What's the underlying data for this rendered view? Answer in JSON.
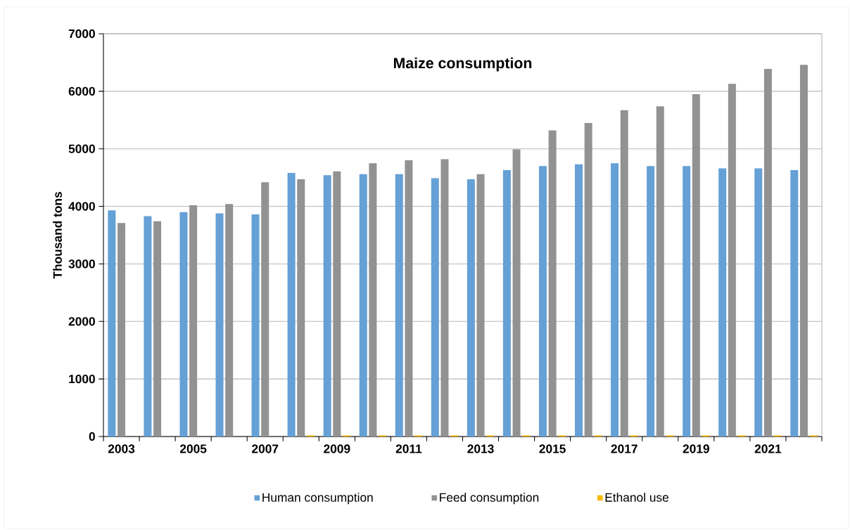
{
  "chart_data": {
    "type": "bar",
    "title": "Maize consumption",
    "ylabel": "Thousand tons",
    "categories": [
      "2003",
      null,
      "2005",
      null,
      "2007",
      null,
      "2009",
      null,
      "2011",
      null,
      "2013",
      null,
      "2015",
      null,
      "2017",
      null,
      "2019",
      null,
      "2021",
      null
    ],
    "series": [
      {
        "name": "Human consumption",
        "color": "#65a0d6",
        "values": [
          3930,
          3830,
          3900,
          3880,
          3860,
          4580,
          4540,
          4560,
          4560,
          4490,
          4470,
          4630,
          4700,
          4730,
          4750,
          4700,
          4700,
          4660,
          4660,
          4630
        ]
      },
      {
        "name": "Feed consumption",
        "color": "#929292",
        "values": [
          3710,
          3740,
          4020,
          4040,
          4420,
          4470,
          4610,
          4750,
          4800,
          4820,
          4560,
          4990,
          5320,
          5450,
          5670,
          5740,
          5950,
          6130,
          6390,
          6460
        ]
      },
      {
        "name": "Ethanol use",
        "color": "#f5b800",
        "values": [
          0,
          0,
          0,
          0,
          0,
          20,
          20,
          20,
          20,
          20,
          20,
          20,
          20,
          20,
          20,
          20,
          20,
          20,
          20,
          20
        ]
      }
    ],
    "ylim": [
      0,
      7000
    ],
    "yticks": [
      0,
      1000,
      2000,
      3000,
      4000,
      5000,
      6000,
      7000
    ],
    "grid": "y",
    "legend": "bottom"
  }
}
